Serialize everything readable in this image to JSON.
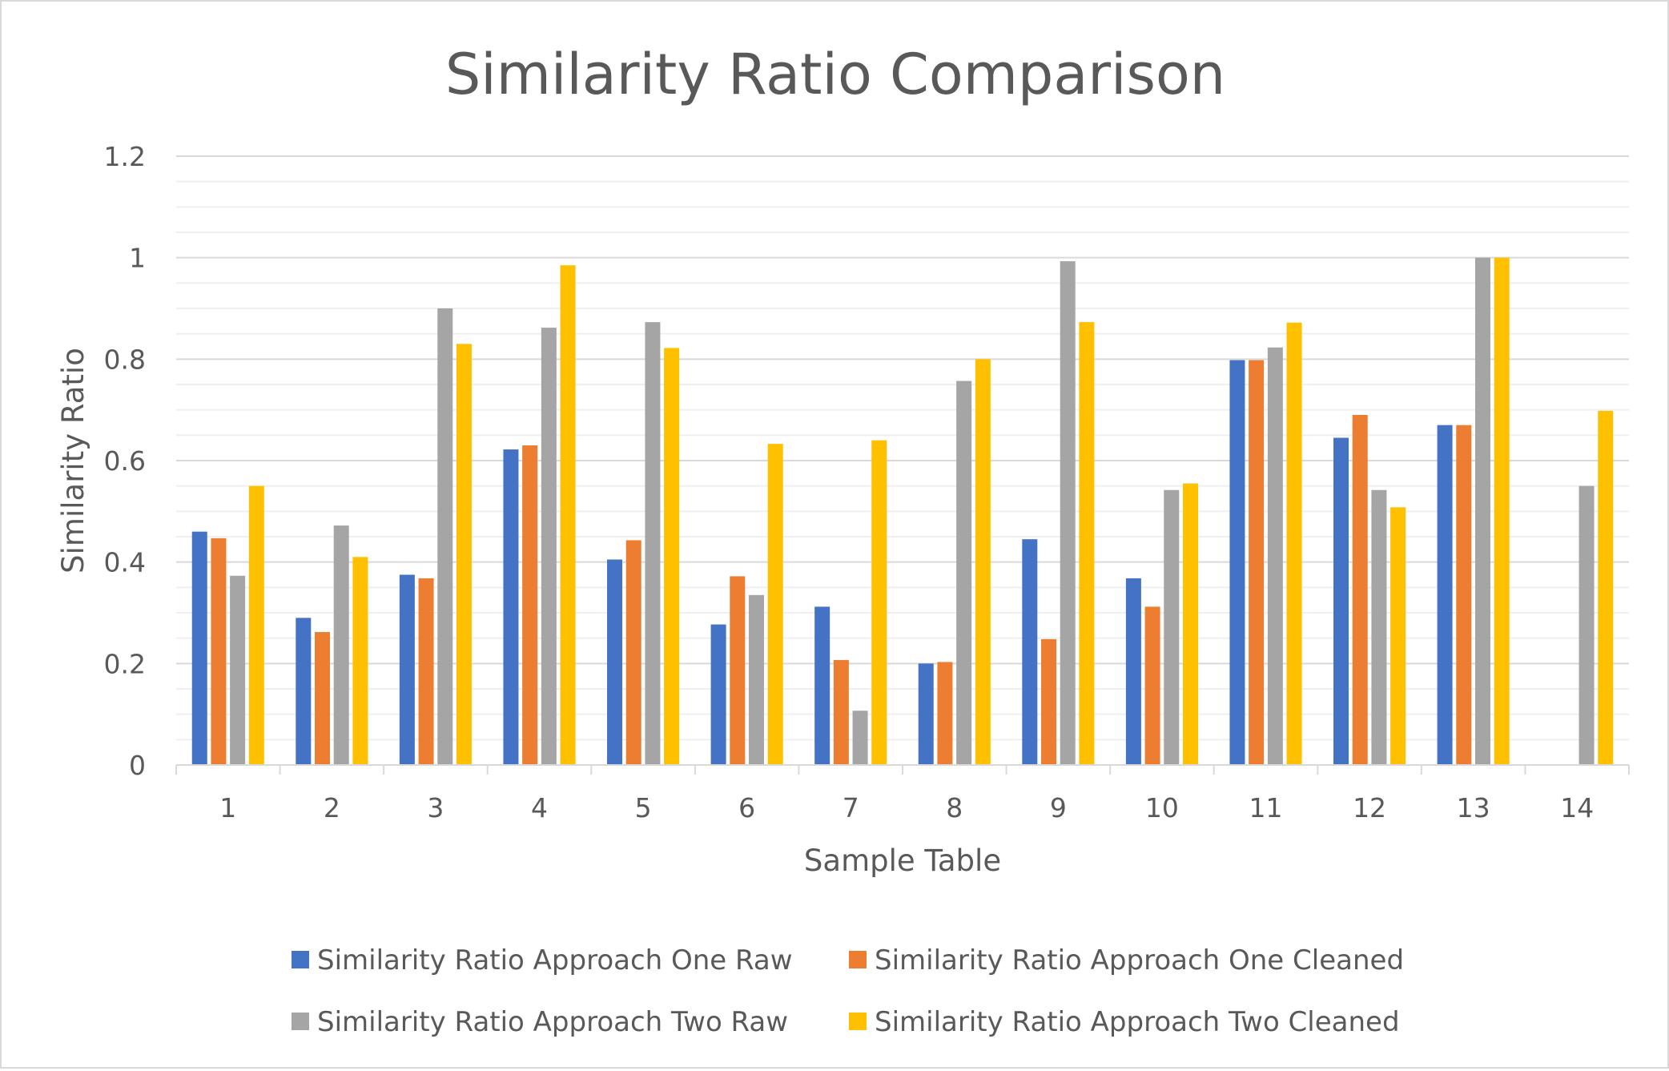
{
  "chart_data": {
    "type": "bar",
    "title": "Similarity Ratio Comparison",
    "xlabel": "Sample Table",
    "ylabel": "Similarity Ratio",
    "ylim": [
      0,
      1.2
    ],
    "yticks": [
      0,
      0.2,
      0.4,
      0.6,
      0.8,
      1,
      1.2
    ],
    "ytick_labels": [
      "0",
      "0.2",
      "0.4",
      "0.6",
      "0.8",
      "1",
      "1.2"
    ],
    "grid": true,
    "legend_position": "bottom",
    "categories": [
      "1",
      "2",
      "3",
      "4",
      "5",
      "6",
      "7",
      "8",
      "9",
      "10",
      "11",
      "12",
      "13",
      "14"
    ],
    "series": [
      {
        "name": "Similarity Ratio Approach One Raw",
        "color": "#4472c4",
        "values": [
          0.46,
          0.29,
          0.375,
          0.622,
          0.405,
          0.277,
          0.312,
          0.2,
          0.445,
          0.368,
          0.798,
          0.645,
          0.67,
          null
        ]
      },
      {
        "name": "Similarity Ratio Approach One Cleaned",
        "color": "#ed7d31",
        "values": [
          0.447,
          0.262,
          0.368,
          0.63,
          0.443,
          0.372,
          0.207,
          0.203,
          0.248,
          0.312,
          0.798,
          0.69,
          0.67,
          null
        ]
      },
      {
        "name": "Similarity Ratio Approach Two Raw",
        "color": "#a5a5a5",
        "values": [
          0.373,
          0.472,
          0.9,
          0.862,
          0.873,
          0.335,
          0.107,
          0.757,
          0.993,
          0.542,
          0.823,
          0.542,
          1.0,
          0.55
        ]
      },
      {
        "name": "Similarity Ratio Approach Two Cleaned",
        "color": "#ffc000",
        "values": [
          0.55,
          0.41,
          0.83,
          0.985,
          0.822,
          0.633,
          0.64,
          0.8,
          0.873,
          0.555,
          0.872,
          0.508,
          1.0,
          0.698
        ]
      }
    ]
  }
}
